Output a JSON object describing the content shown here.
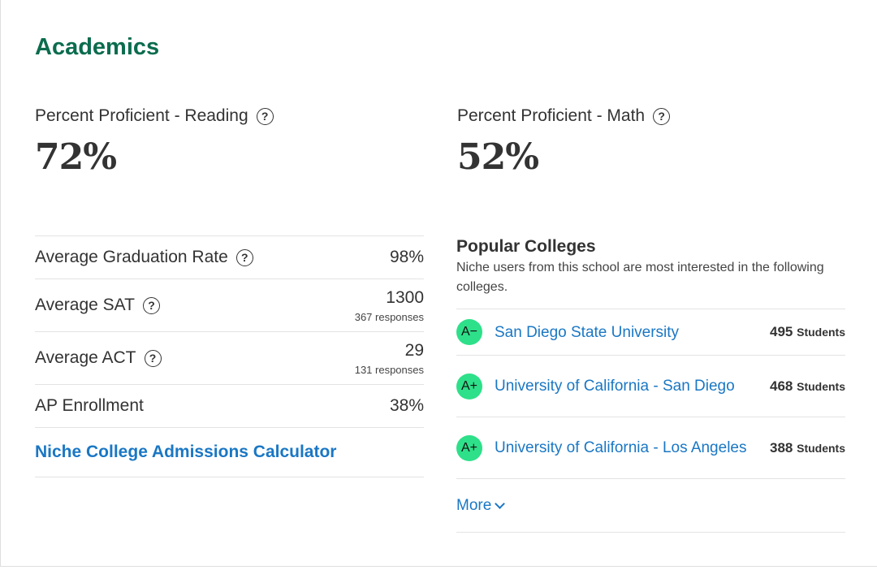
{
  "section": {
    "title": "Academics"
  },
  "stats": [
    {
      "label": "Percent Proficient - Reading",
      "value": "72%"
    },
    {
      "label": "Percent Proficient - Math",
      "value": "52%"
    }
  ],
  "help_glyph": "?",
  "metrics": [
    {
      "label": "Average Graduation Rate",
      "value": "98%",
      "sub": ""
    },
    {
      "label": "Average SAT",
      "value": "1300",
      "sub": "367 responses"
    },
    {
      "label": "Average ACT",
      "value": "29",
      "sub": "131 responses"
    },
    {
      "label": "AP Enrollment",
      "value": "38%",
      "sub": ""
    }
  ],
  "calculator_link": "Niche College Admissions Calculator",
  "popular": {
    "title": "Popular Colleges",
    "description": "Niche users from this school are most interested in the following colleges.",
    "colleges": [
      {
        "grade": "A−",
        "name": "San Diego State University",
        "count": "495",
        "unit": "Students"
      },
      {
        "grade": "A+",
        "name": "University of California - San Diego",
        "count": "468",
        "unit": "Students"
      },
      {
        "grade": "A+",
        "name": "University of California - Los Angeles",
        "count": "388",
        "unit": "Students"
      }
    ],
    "more_label": "More"
  },
  "colors": {
    "title": "#0b6c4e",
    "link": "#1a77c4",
    "grade_badge": "#2de089"
  }
}
